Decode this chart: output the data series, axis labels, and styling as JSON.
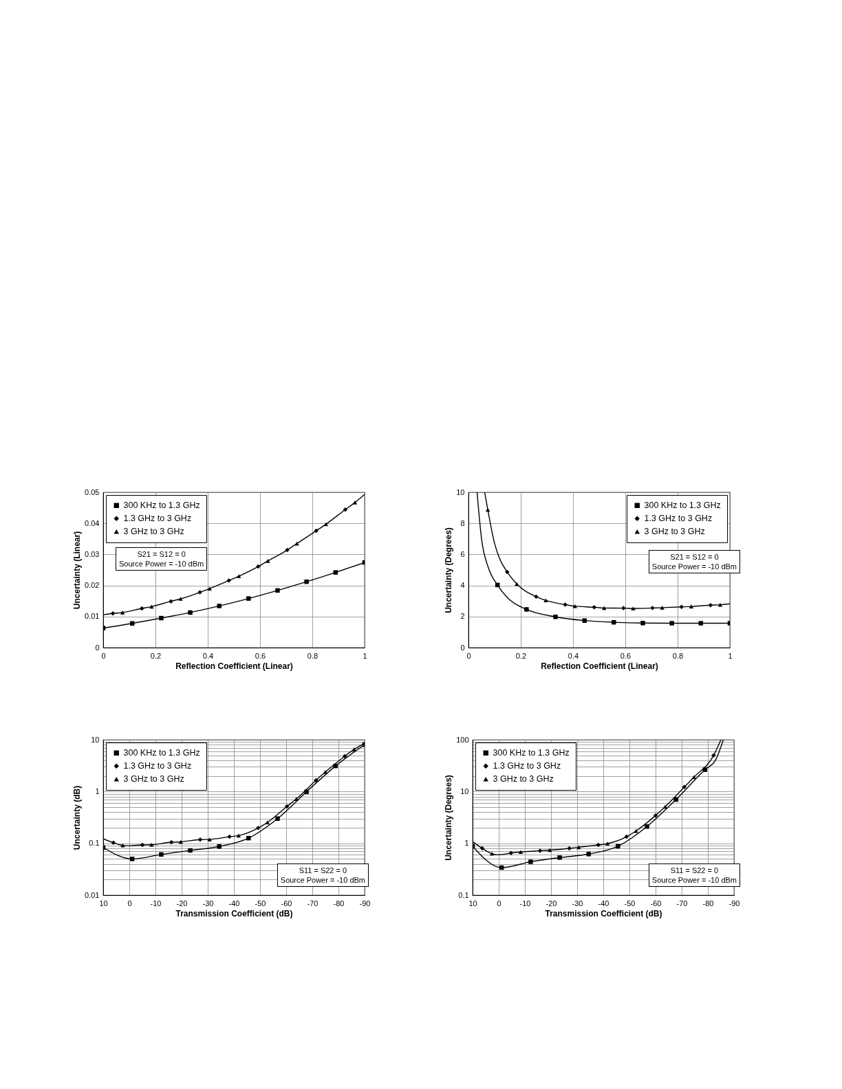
{
  "chart_data": [
    {
      "type": "line",
      "xlabel": "Reflection Coefficient (Linear)",
      "ylabel": "Uncertainty (Linear)",
      "xlim": [
        0,
        1
      ],
      "xticks": [
        0,
        0.2,
        0.4,
        0.6,
        0.8,
        1
      ],
      "ylim": [
        0,
        0.05
      ],
      "yticks": [
        0,
        0.01,
        0.02,
        0.03,
        0.04,
        0.05
      ],
      "grid": true,
      "legend": "top left",
      "annotations": [
        "S21 = S12 = 0",
        "Source Power = -10 dBm"
      ],
      "series": [
        {
          "type": "line",
          "marker": "none",
          "color": "#000000",
          "x": [
            0,
            0.111,
            0.222,
            0.333,
            0.444,
            0.556,
            0.667,
            0.778,
            0.889,
            1
          ],
          "values": [
            0.0063,
            0.0078,
            0.0095,
            0.0113,
            0.0134,
            0.0158,
            0.0184,
            0.0212,
            0.0242,
            0.0274
          ]
        },
        {
          "type": "line",
          "marker": "none",
          "color": "#000000",
          "x": [
            0,
            0.037,
            0.074,
            0.148,
            0.185,
            0.259,
            0.296,
            0.37,
            0.407,
            0.481,
            0.519,
            0.593,
            0.63,
            0.704,
            0.741,
            0.815,
            0.852,
            0.926,
            0.963,
            1
          ],
          "values": [
            0.0106,
            0.011,
            0.0113,
            0.0126,
            0.0132,
            0.0149,
            0.0157,
            0.0178,
            0.019,
            0.0216,
            0.023,
            0.0261,
            0.0279,
            0.0314,
            0.0335,
            0.0376,
            0.0397,
            0.0444,
            0.0467,
            0.0493
          ]
        },
        {
          "type": "scatter",
          "marker": "square",
          "name": "300 KHz to 1.3 GHz",
          "color": "#000000",
          "x": [
            0,
            0.111,
            0.222,
            0.333,
            0.444,
            0.556,
            0.667,
            0.778,
            0.889,
            1
          ],
          "values": [
            0.0063,
            0.0078,
            0.0095,
            0.0113,
            0.0134,
            0.0158,
            0.0184,
            0.0212,
            0.0242,
            0.0274
          ]
        },
        {
          "type": "scatter",
          "marker": "diamond",
          "name": "1.3 GHz to 3 GHz",
          "color": "#000000",
          "x": [
            0.037,
            0.148,
            0.259,
            0.37,
            0.481,
            0.593,
            0.704,
            0.815,
            0.926
          ],
          "values": [
            0.011,
            0.0126,
            0.0149,
            0.0178,
            0.0216,
            0.0261,
            0.0314,
            0.0376,
            0.0444
          ]
        },
        {
          "type": "scatter",
          "marker": "triangle",
          "name": "3 GHz to 3 GHz",
          "color": "#000000",
          "x": [
            0.074,
            0.185,
            0.296,
            0.407,
            0.519,
            0.63,
            0.741,
            0.852,
            0.963
          ],
          "values": [
            0.0113,
            0.0132,
            0.0157,
            0.019,
            0.023,
            0.0279,
            0.0335,
            0.0397,
            0.0467
          ]
        }
      ]
    },
    {
      "type": "line",
      "xlabel": "Reflection Coefficient (Linear)",
      "ylabel": "Uncertainty (Degrees)",
      "xlim": [
        0,
        1
      ],
      "xticks": [
        0,
        0.2,
        0.4,
        0.6,
        0.8,
        1
      ],
      "ylim": [
        0,
        10
      ],
      "yticks": [
        0,
        2,
        4,
        6,
        8,
        10
      ],
      "grid": true,
      "legend": "top right",
      "annotations": [
        "S21 = S12 = 0",
        "Source Power = -10 dBm"
      ],
      "series": [
        {
          "type": "line",
          "marker": "none",
          "color": "#000000",
          "x": [
            0.033,
            0.05,
            0.075,
            0.111,
            0.15,
            0.222,
            0.333,
            0.444,
            0.556,
            0.667,
            0.778,
            0.889,
            1
          ],
          "values": [
            10,
            7,
            5.2,
            4.03,
            3.2,
            2.46,
            1.98,
            1.74,
            1.63,
            1.58,
            1.57,
            1.57,
            1.57
          ]
        },
        {
          "type": "line",
          "marker": "none",
          "color": "#000000",
          "x": [
            0.062,
            0.074,
            0.1,
            0.12,
            0.148,
            0.185,
            0.259,
            0.296,
            0.37,
            0.407,
            0.481,
            0.519,
            0.593,
            0.63,
            0.704,
            0.741,
            0.815,
            0.852,
            0.926,
            0.963,
            1
          ],
          "values": [
            10,
            8.87,
            6.7,
            5.7,
            4.87,
            4.09,
            3.28,
            3.04,
            2.77,
            2.67,
            2.6,
            2.55,
            2.54,
            2.52,
            2.55,
            2.57,
            2.62,
            2.65,
            2.73,
            2.76,
            2.82
          ]
        },
        {
          "type": "scatter",
          "marker": "square",
          "name": "300 KHz to 1.3 GHz",
          "color": "#000000",
          "x": [
            0.111,
            0.222,
            0.333,
            0.444,
            0.556,
            0.667,
            0.778,
            0.889,
            1
          ],
          "values": [
            4.03,
            2.46,
            1.98,
            1.74,
            1.63,
            1.58,
            1.57,
            1.57,
            1.57
          ]
        },
        {
          "type": "scatter",
          "marker": "diamond",
          "name": "1.3 GHz to 3 GHz",
          "color": "#000000",
          "x": [
            0.148,
            0.259,
            0.37,
            0.481,
            0.593,
            0.704,
            0.815,
            0.926
          ],
          "values": [
            4.87,
            3.28,
            2.77,
            2.6,
            2.54,
            2.55,
            2.62,
            2.73
          ]
        },
        {
          "type": "scatter",
          "marker": "triangle",
          "name": "3 GHz to 3 GHz",
          "color": "#000000",
          "x": [
            0.074,
            0.185,
            0.296,
            0.407,
            0.519,
            0.63,
            0.741,
            0.852,
            0.963
          ],
          "values": [
            8.87,
            4.09,
            3.04,
            2.67,
            2.55,
            2.52,
            2.57,
            2.65,
            2.76
          ]
        }
      ]
    },
    {
      "type": "line",
      "xlabel": "Transmission Coefficient (dB)",
      "ylabel": "Uncertainty (dB)",
      "log": "y",
      "xlim": [
        10,
        -90
      ],
      "xticks": [
        10,
        0,
        -10,
        -20,
        -30,
        -40,
        -50,
        -60,
        -70,
        -80,
        -90
      ],
      "ylim": [
        0.01,
        10
      ],
      "yticks": [
        0.01,
        {
          "value": 0.02,
          "label": null
        },
        {
          "value": 0.03,
          "label": null
        },
        {
          "value": 0.04,
          "label": null
        },
        {
          "value": 0.05,
          "label": null
        },
        {
          "value": 0.06,
          "label": null
        },
        {
          "value": 0.07,
          "label": null
        },
        {
          "value": 0.08,
          "label": null
        },
        {
          "value": 0.09,
          "label": null
        },
        0.1,
        {
          "value": 0.2,
          "label": null
        },
        {
          "value": 0.3,
          "label": null
        },
        {
          "value": 0.4,
          "label": null
        },
        {
          "value": 0.5,
          "label": null
        },
        {
          "value": 0.6,
          "label": null
        },
        {
          "value": 0.7,
          "label": null
        },
        {
          "value": 0.8,
          "label": null
        },
        {
          "value": 0.9,
          "label": null
        },
        1,
        {
          "value": 2,
          "label": null
        },
        {
          "value": 3,
          "label": null
        },
        {
          "value": 4,
          "label": null
        },
        {
          "value": 5,
          "label": null
        },
        {
          "value": 6,
          "label": null
        },
        {
          "value": 7,
          "label": null
        },
        {
          "value": 8,
          "label": null
        },
        {
          "value": 9,
          "label": null
        },
        10
      ],
      "grid": true,
      "legend": "top left",
      "annotations": [
        "S11 = S22 = 0",
        "Source Power = -10 dBm"
      ],
      "series": [
        {
          "type": "line",
          "marker": "none",
          "color": "#000000",
          "x": [
            10,
            -1.1,
            -12.2,
            -23.3,
            -34.4,
            -45.6,
            -56.7,
            -67.8,
            -78.9,
            -90
          ],
          "values": [
            0.083,
            0.05,
            0.061,
            0.073,
            0.087,
            0.126,
            0.3,
            0.99,
            3.12,
            8.05
          ]
        },
        {
          "type": "line",
          "marker": "none",
          "color": "#000000",
          "x": [
            10,
            6.1,
            2.5,
            0,
            -5,
            -8.5,
            -16.1,
            -19.7,
            -27.1,
            -30.7,
            -38.3,
            -41.8,
            -49.3,
            -52.8,
            -60.3,
            -63.9,
            -71.4,
            -75,
            -82.4,
            -86,
            -90
          ],
          "values": [
            0.123,
            0.103,
            0.0914,
            0.09,
            0.093,
            0.094,
            0.105,
            0.107,
            0.118,
            0.119,
            0.134,
            0.141,
            0.198,
            0.253,
            0.515,
            0.72,
            1.65,
            2.39,
            4.81,
            6.55,
            8.56
          ]
        },
        {
          "type": "scatter",
          "marker": "square",
          "name": "300 KHz to 1.3 GHz",
          "color": "#000000",
          "x": [
            10,
            -1.1,
            -12.2,
            -23.3,
            -34.4,
            -45.6,
            -56.7,
            -67.8,
            -78.9,
            -90
          ],
          "values": [
            0.083,
            0.05,
            0.061,
            0.073,
            0.087,
            0.126,
            0.3,
            0.99,
            3.12,
            8.05
          ]
        },
        {
          "type": "scatter",
          "marker": "diamond",
          "name": "1.3 GHz to 3 GHz",
          "color": "#000000",
          "x": [
            6.1,
            -5,
            -16.1,
            -27.1,
            -38.3,
            -49.3,
            -60.3,
            -71.4,
            -82.4
          ],
          "values": [
            0.103,
            0.093,
            0.105,
            0.118,
            0.134,
            0.198,
            0.515,
            1.65,
            4.81
          ]
        },
        {
          "type": "scatter",
          "marker": "triangle",
          "name": "3 GHz to 3 GHz",
          "color": "#000000",
          "x": [
            2.5,
            -8.5,
            -19.7,
            -30.7,
            -41.8,
            -52.8,
            -63.9,
            -75,
            -86
          ],
          "values": [
            0.0914,
            0.094,
            0.107,
            0.119,
            0.141,
            0.253,
            0.72,
            2.39,
            6.55
          ]
        }
      ]
    },
    {
      "type": "line",
      "xlabel": "Transmission Coefficient (dB)",
      "ylabel": "Uncertainty (Degrees)",
      "log": "y",
      "xlim": [
        10,
        -90
      ],
      "xticks": [
        10,
        0,
        -10,
        -20,
        -30,
        -40,
        -50,
        -60,
        -70,
        -80,
        -90
      ],
      "ylim": [
        0.1,
        100
      ],
      "yticks": [
        0.1,
        {
          "value": 0.2,
          "label": null
        },
        {
          "value": 0.3,
          "label": null
        },
        {
          "value": 0.4,
          "label": null
        },
        {
          "value": 0.5,
          "label": null
        },
        {
          "value": 0.6,
          "label": null
        },
        {
          "value": 0.7,
          "label": null
        },
        {
          "value": 0.8,
          "label": null
        },
        {
          "value": 0.9,
          "label": null
        },
        1,
        {
          "value": 2,
          "label": null
        },
        {
          "value": 3,
          "label": null
        },
        {
          "value": 4,
          "label": null
        },
        {
          "value": 5,
          "label": null
        },
        {
          "value": 6,
          "label": null
        },
        {
          "value": 7,
          "label": null
        },
        {
          "value": 8,
          "label": null
        },
        {
          "value": 9,
          "label": null
        },
        10,
        {
          "value": 20,
          "label": null
        },
        {
          "value": 30,
          "label": null
        },
        {
          "value": 40,
          "label": null
        },
        {
          "value": 50,
          "label": null
        },
        {
          "value": 60,
          "label": null
        },
        {
          "value": 70,
          "label": null
        },
        {
          "value": 80,
          "label": null
        },
        {
          "value": 90,
          "label": null
        },
        100
      ],
      "grid": true,
      "legend": "top left",
      "annotations": [
        "S11 = S22 = 0",
        "Source Power = -10 dBm"
      ],
      "series": [
        {
          "type": "line",
          "marker": "none",
          "color": "#000000",
          "x": [
            10,
            -1.1,
            -12.2,
            -23.3,
            -34.4,
            -45.6,
            -56.7,
            -67.8,
            -78.9,
            -83,
            -85.9
          ],
          "values": [
            0.88,
            0.34,
            0.44,
            0.53,
            0.62,
            0.88,
            2.11,
            7,
            26.4,
            41,
            100
          ]
        },
        {
          "type": "line",
          "marker": "none",
          "color": "#000000",
          "x": [
            10,
            6.3,
            2.6,
            0,
            -4.7,
            -8.4,
            -15.8,
            -19.5,
            -27,
            -30.6,
            -38.1,
            -41.6,
            -48.9,
            -52.5,
            -60,
            -63.7,
            -71,
            -74.7,
            -82.2,
            -85
          ],
          "values": [
            1.08,
            0.8,
            0.63,
            0.6,
            0.65,
            0.68,
            0.72,
            0.74,
            0.8,
            0.84,
            0.93,
            0.99,
            1.34,
            1.73,
            3.45,
            5.1,
            12.2,
            19,
            49.8,
            100
          ]
        },
        {
          "type": "scatter",
          "marker": "square",
          "name": "300 KHz to 1.3 GHz",
          "color": "#000000",
          "x": [
            10,
            -1.1,
            -12.2,
            -23.3,
            -34.4,
            -45.6,
            -56.7,
            -67.8,
            -78.9
          ],
          "values": [
            0.88,
            0.34,
            0.44,
            0.53,
            0.62,
            0.88,
            2.11,
            7,
            26.4
          ]
        },
        {
          "type": "scatter",
          "marker": "diamond",
          "name": "1.3 GHz to 3 GHz",
          "color": "#000000",
          "x": [
            6.3,
            -4.7,
            -15.8,
            -27,
            -38.1,
            -48.9,
            -60,
            -71,
            -82.2
          ],
          "values": [
            0.8,
            0.65,
            0.72,
            0.8,
            0.93,
            1.34,
            3.45,
            12.2,
            49.8
          ]
        },
        {
          "type": "scatter",
          "marker": "triangle",
          "name": "3 GHz to 3 GHz",
          "color": "#000000",
          "x": [
            2.6,
            -8.4,
            -19.5,
            -30.6,
            -41.6,
            -52.5,
            -63.7,
            -74.7
          ],
          "values": [
            0.63,
            0.68,
            0.74,
            0.84,
            0.99,
            1.73,
            5.1,
            19
          ]
        }
      ]
    }
  ]
}
